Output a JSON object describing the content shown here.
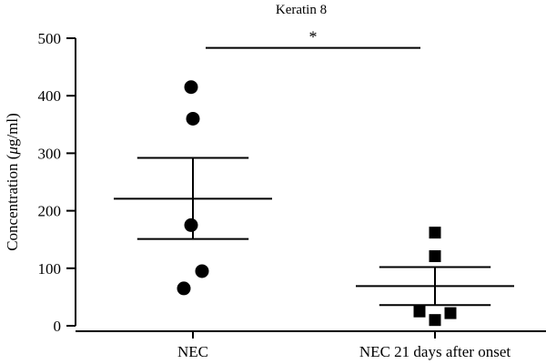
{
  "chart_data": {
    "type": "scatter",
    "title": "Keratin 8",
    "ylabel": "Concentration (μg/ml)",
    "ylabel_parts": [
      "Concentration (",
      "μ",
      "g/ml)"
    ],
    "xlabel": "",
    "ylim": [
      0,
      500
    ],
    "yticks": [
      0,
      100,
      200,
      300,
      400,
      500
    ],
    "categories": [
      "NEC",
      "NEC 21 days after onset"
    ],
    "groups": [
      {
        "category": "NEC",
        "marker": "circle",
        "points": [
          415,
          360,
          175,
          95,
          65
        ],
        "mean": 221,
        "sem_low": 151,
        "sem_high": 292
      },
      {
        "category": "NEC 21 days after onset",
        "marker": "square",
        "points": [
          162,
          121,
          25,
          22,
          10
        ],
        "mean": 69,
        "sem_low": 36,
        "sem_high": 102
      }
    ],
    "significance": {
      "label": "*",
      "between": [
        "NEC",
        "NEC 21 days after onset"
      ],
      "y": 480
    },
    "colors": {
      "marker": "#000000",
      "line": "#000000"
    },
    "grid": false,
    "legend": "none"
  }
}
